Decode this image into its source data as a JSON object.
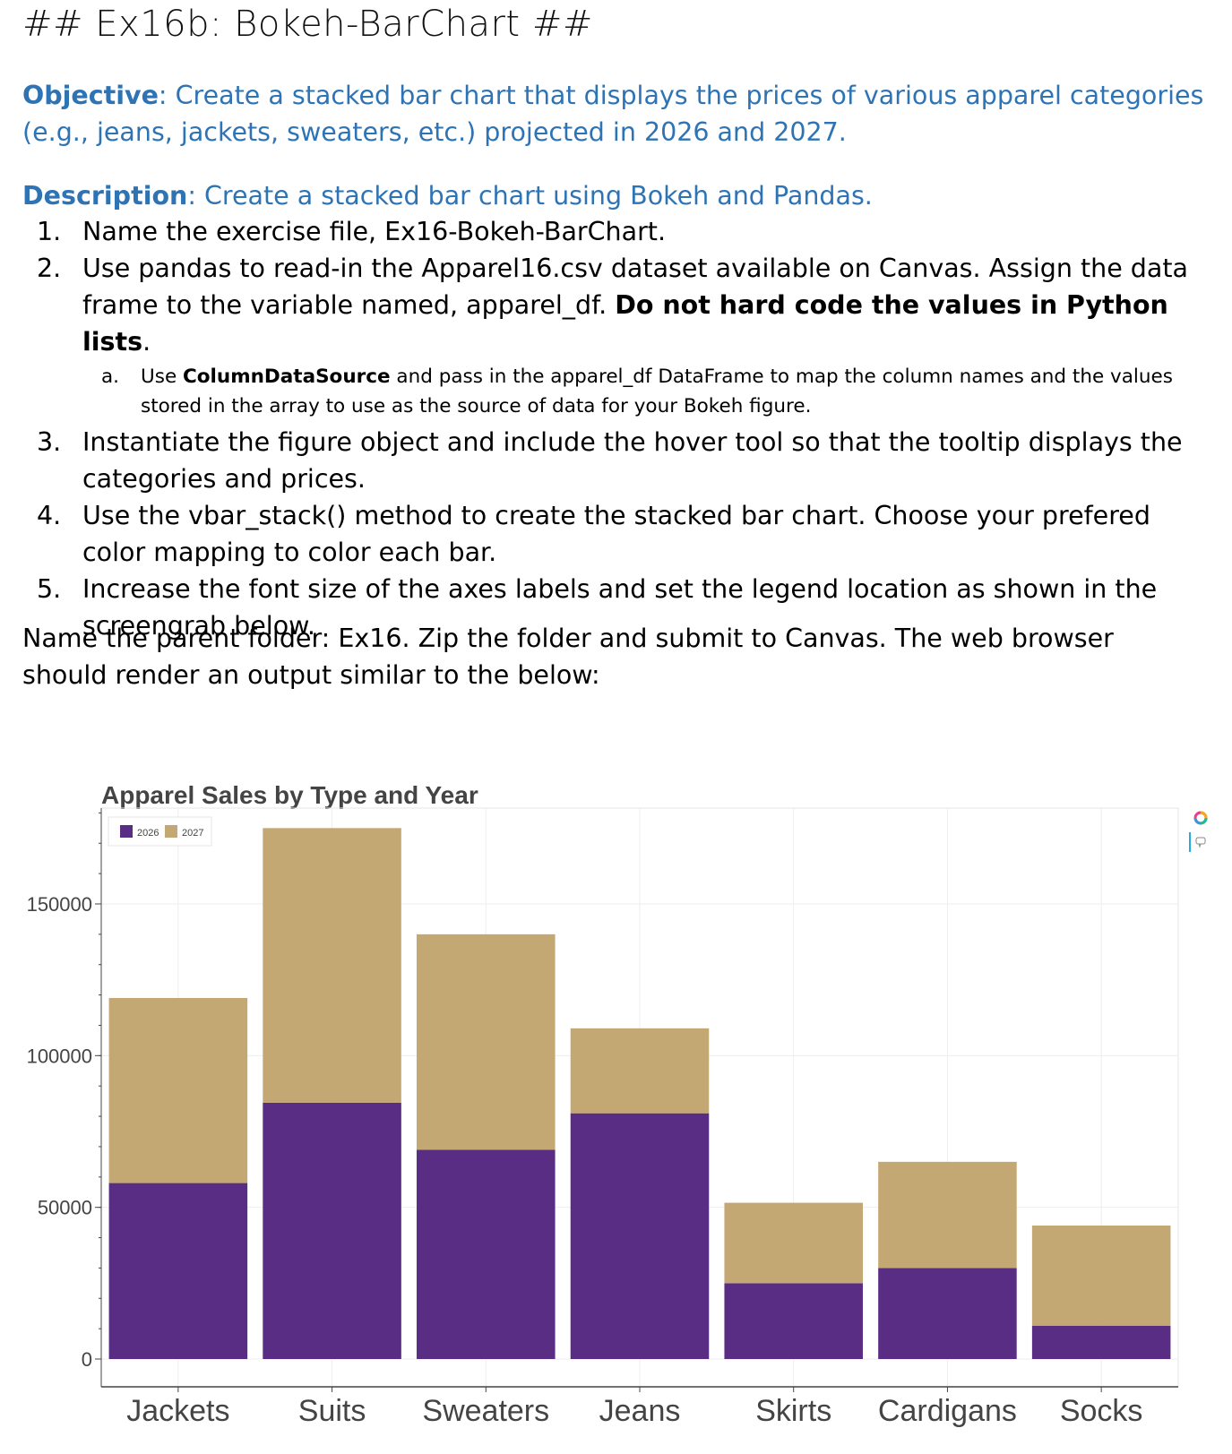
{
  "heading": "## Ex16b: Bokeh-BarChart ##",
  "objective": {
    "label": "Objective",
    "text": ": Create a stacked bar chart that displays the prices of various apparel categories (e.g., jeans, jackets, sweaters, etc.) projected in 2026 and 2027."
  },
  "description": {
    "label": "Description",
    "text": ": Create a stacked bar chart using Bokeh and Pandas."
  },
  "steps": [
    {
      "num": "1.",
      "text": "Name the exercise file, Ex16-Bokeh-BarChart."
    },
    {
      "num": "2.",
      "text": "Use pandas to read-in the Apparel16.csv dataset available on Canvas. Assign the data frame to the variable named, apparel_df. ",
      "bold": "Do not hard code the values in Python lists",
      "after": "."
    },
    {
      "num": "3.",
      "text": "Instantiate the figure object and include the hover tool so that the tooltip displays the categories and prices."
    },
    {
      "num": "4.",
      "text": "Use the vbar_stack() method to create the stacked bar chart. Choose your prefered color mapping to color each bar."
    },
    {
      "num": "5.",
      "text": "Increase the font size of the axes labels and set the legend location as shown in the screengrab below."
    }
  ],
  "substep": {
    "num": "a.",
    "pre": "Use ",
    "bold": "ColumnDataSource",
    "post": " and pass in the apparel_df DataFrame to map the column names and the values stored in the array to use as the source of data for your Bokeh figure."
  },
  "closing": "Name the parent folder: Ex16. Zip the folder and submit to Canvas. The web browser should render an output similar to the below:",
  "chart_data": {
    "type": "bar",
    "stacked": true,
    "title": "Apparel Sales by Type and Year",
    "categories": [
      "Jackets",
      "Suits",
      "Sweaters",
      "Jeans",
      "Skirts",
      "Cardigans",
      "Socks"
    ],
    "series": [
      {
        "name": "2026",
        "color": "#5a2d84",
        "values": [
          58000,
          84500,
          69000,
          81000,
          25000,
          30000,
          11000
        ]
      },
      {
        "name": "2027",
        "color": "#c4a873",
        "values": [
          61000,
          90500,
          71000,
          28000,
          26500,
          35000,
          33000
        ]
      }
    ],
    "yticks": [
      "0",
      "50000",
      "100000",
      "150000"
    ],
    "ylim": [
      -2000,
      182000
    ],
    "grid": true,
    "legend": "top-left",
    "xlabel": "",
    "ylabel": ""
  }
}
